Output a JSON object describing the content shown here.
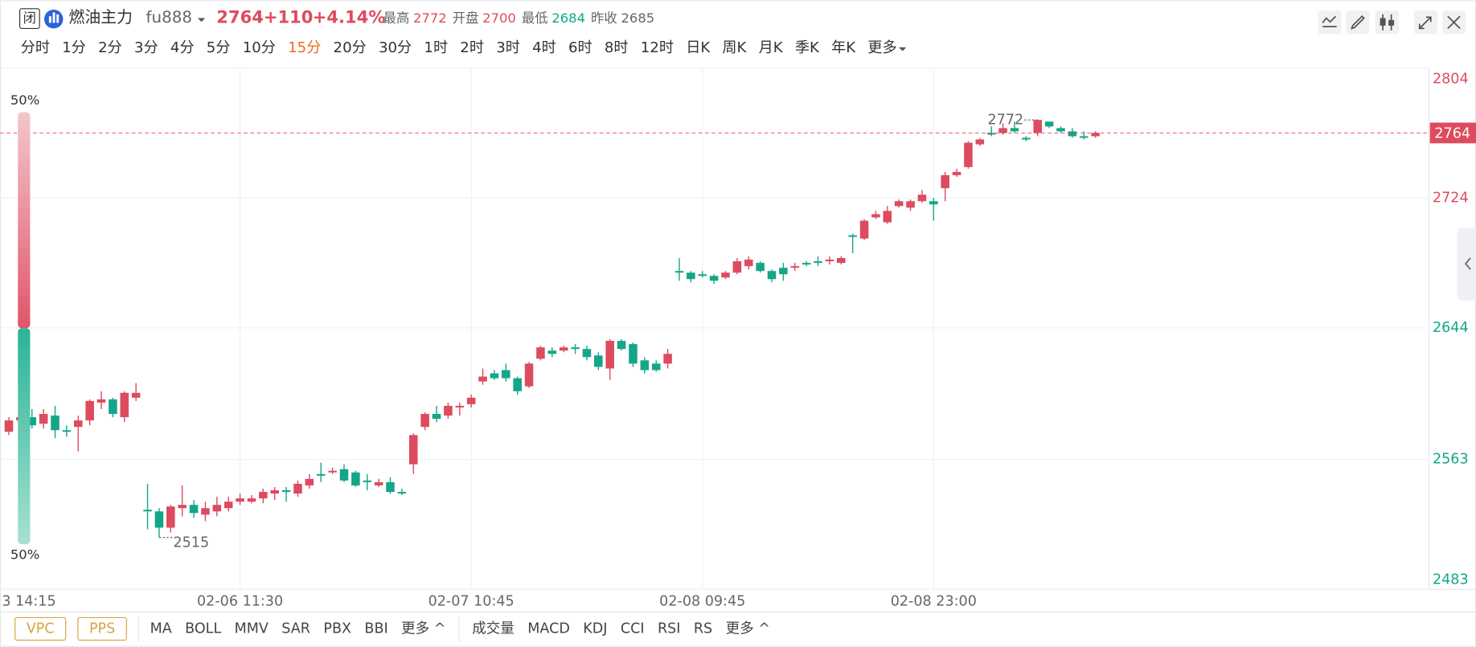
{
  "header": {
    "status": "闭",
    "name": "燃油主力",
    "code": "fu888",
    "price": "2764",
    "change": "+110",
    "change_pct": "+4.14%",
    "stats": [
      {
        "label": "最高",
        "value": 2772
      },
      {
        "label": "开盘",
        "value": 2700
      },
      {
        "label": "最低",
        "value": 2684
      },
      {
        "label": "昨收",
        "value": 2685
      }
    ]
  },
  "periods": {
    "items": [
      "分时",
      "1分",
      "2分",
      "3分",
      "4分",
      "5分",
      "10分",
      "15分",
      "20分",
      "30分",
      "1时",
      "2时",
      "3时",
      "4时",
      "6时",
      "8时",
      "12时",
      "日K",
      "周K",
      "月K",
      "季K",
      "年K",
      "更多"
    ],
    "selected": 7
  },
  "indicators": {
    "boxed": [
      "VPC",
      "PPS"
    ],
    "main": [
      "MA",
      "BOLL",
      "MMV",
      "SAR",
      "PBX",
      "BBI",
      "更多 ^"
    ],
    "sub": [
      "成交量",
      "MACD",
      "KDJ",
      "CCI",
      "RSI",
      "RS",
      "更多 ^"
    ]
  },
  "side_bar": {
    "values": [
      50,
      50
    ],
    "value_labels": [
      "50%",
      "50%"
    ]
  },
  "chart_data": {
    "type": "candlestick",
    "up_color": "#dd4b5e",
    "down_color": "#14a689",
    "ylim": [
      2483,
      2804
    ],
    "yticks": [
      2483,
      2563,
      2644,
      2724,
      2804
    ],
    "current_price": 2764,
    "grid": true,
    "categories": [
      "3 14:15",
      null,
      null,
      null,
      null,
      null,
      null,
      null,
      null,
      null,
      null,
      null,
      null,
      null,
      null,
      null,
      null,
      null,
      null,
      null,
      "02-06 11:30",
      null,
      null,
      null,
      null,
      null,
      null,
      null,
      null,
      null,
      null,
      null,
      null,
      null,
      null,
      null,
      null,
      null,
      null,
      null,
      "02-07 10:45",
      null,
      null,
      null,
      null,
      null,
      null,
      null,
      null,
      null,
      null,
      null,
      null,
      null,
      null,
      null,
      null,
      null,
      null,
      null,
      "02-08 09:45",
      null,
      null,
      null,
      null,
      null,
      null,
      null,
      null,
      null,
      null,
      null,
      null,
      null,
      null,
      null,
      null,
      null,
      null,
      null,
      "02-08 23:00",
      null,
      null,
      null,
      null,
      null,
      null,
      null,
      null,
      null,
      null,
      null,
      null,
      null,
      null
    ],
    "series": {
      "open": [
        2580,
        2587,
        2589,
        2585,
        2590,
        2581,
        2583,
        2587,
        2598,
        2600,
        2589,
        2601,
        2532,
        2531,
        2521,
        2533,
        2535,
        2529,
        2531,
        2533,
        2537,
        2537,
        2539,
        2542,
        2544,
        2542,
        2547,
        2554,
        2555,
        2557,
        2555,
        2550,
        2547,
        2549,
        2543,
        2560,
        2583,
        2591,
        2590,
        2595,
        2597,
        2611,
        2616,
        2618,
        2613,
        2608,
        2625,
        2630,
        2630,
        2632,
        2631,
        2627,
        2619,
        2636,
        2634,
        2624,
        2622,
        2622,
        2679,
        2678,
        2677,
        2676,
        2675,
        2678,
        2682,
        2684,
        2679,
        2681,
        2681,
        2684,
        2685,
        2685,
        2684,
        2701,
        2699,
        2712,
        2709,
        2719,
        2718,
        2722,
        2722,
        2730,
        2738,
        2743,
        2757,
        2764,
        2764,
        2767,
        2761,
        2764,
        2771,
        2767,
        2765,
        2762,
        2762
      ],
      "high": [
        2589,
        2592,
        2594,
        2594,
        2596,
        2584,
        2590,
        2600,
        2605,
        2601,
        2605,
        2610,
        2548,
        2533,
        2535,
        2547,
        2538,
        2537,
        2540,
        2540,
        2542,
        2541,
        2545,
        2546,
        2546,
        2550,
        2554,
        2561,
        2558,
        2560,
        2556,
        2554,
        2551,
        2552,
        2545,
        2579,
        2592,
        2596,
        2598,
        2598,
        2603,
        2619,
        2618,
        2622,
        2614,
        2623,
        2633,
        2632,
        2633,
        2634,
        2633,
        2629,
        2637,
        2637,
        2635,
        2626,
        2624,
        2631,
        2687,
        2679,
        2679,
        2677,
        2679,
        2687,
        2688,
        2685,
        2680,
        2684,
        2684,
        2685,
        2688,
        2688,
        2688,
        2702,
        2711,
        2716,
        2719,
        2723,
        2723,
        2729,
        2724,
        2740,
        2742,
        2759,
        2761,
        2768,
        2770,
        2771,
        2762,
        2772,
        2771,
        2768,
        2767,
        2765,
        2765
      ],
      "low": [
        2578,
        2582,
        2582,
        2582,
        2576,
        2577,
        2568,
        2584,
        2594,
        2589,
        2586,
        2599,
        2520,
        2515,
        2518,
        2528,
        2527,
        2525,
        2528,
        2531,
        2535,
        2536,
        2536,
        2538,
        2537,
        2540,
        2545,
        2549,
        2554,
        2549,
        2546,
        2544,
        2546,
        2542,
        2541,
        2554,
        2581,
        2586,
        2588,
        2590,
        2595,
        2609,
        2612,
        2611,
        2603,
        2607,
        2624,
        2626,
        2629,
        2628,
        2624,
        2618,
        2612,
        2630,
        2620,
        2616,
        2617,
        2619,
        2673,
        2672,
        2675,
        2671,
        2674,
        2677,
        2680,
        2678,
        2672,
        2673,
        2679,
        2682,
        2682,
        2683,
        2683,
        2690,
        2698,
        2711,
        2708,
        2718,
        2716,
        2721,
        2710,
        2722,
        2737,
        2742,
        2756,
        2762,
        2763,
        2764,
        2759,
        2762,
        2767,
        2764,
        2761,
        2760,
        2761
      ],
      "close": [
        2587,
        2589,
        2584,
        2591,
        2581,
        2580,
        2587,
        2599,
        2600,
        2591,
        2604,
        2604,
        2531,
        2521,
        2534,
        2535,
        2530,
        2533,
        2535,
        2537,
        2539,
        2539,
        2543,
        2544,
        2543,
        2548,
        2551,
        2553,
        2556,
        2550,
        2547,
        2549,
        2549,
        2543,
        2542,
        2578,
        2591,
        2588,
        2596,
        2596,
        2601,
        2614,
        2613,
        2613,
        2605,
        2622,
        2632,
        2628,
        2632,
        2631,
        2626,
        2620,
        2636,
        2631,
        2622,
        2618,
        2618,
        2628,
        2678,
        2674,
        2676,
        2673,
        2678,
        2685,
        2686,
        2679,
        2674,
        2677,
        2682,
        2683,
        2684,
        2686,
        2687,
        2700,
        2710,
        2714,
        2716,
        2722,
        2722,
        2726,
        2720,
        2738,
        2740,
        2758,
        2760,
        2763,
        2767,
        2765,
        2760,
        2772,
        2768,
        2765,
        2762,
        2761,
        2764
      ]
    }
  }
}
